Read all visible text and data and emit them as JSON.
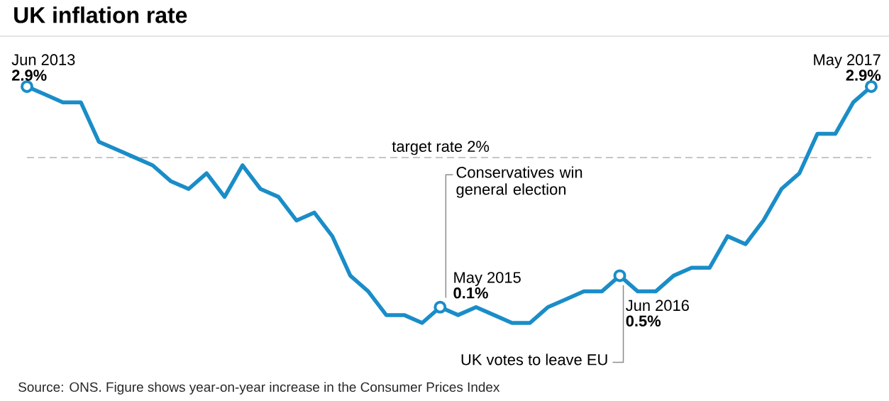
{
  "chart_data": {
    "type": "line",
    "title": "UK inflation rate",
    "categories": [
      null,
      null,
      null,
      null,
      null,
      null,
      null,
      null,
      null,
      null,
      null,
      null,
      null,
      null,
      null,
      null,
      null,
      null,
      null,
      null,
      null,
      null,
      null,
      null,
      null,
      null,
      null,
      null,
      null,
      null,
      null,
      null,
      null,
      null,
      null,
      null,
      null,
      null,
      null,
      null,
      null,
      null,
      null,
      null,
      null,
      null,
      null,
      null
    ],
    "values": [
      2.9,
      2.8,
      2.7,
      2.7,
      2.2,
      2.1,
      2.0,
      1.9,
      1.7,
      1.6,
      1.8,
      1.5,
      1.9,
      1.6,
      1.5,
      1.2,
      1.3,
      1.0,
      0.5,
      0.3,
      0.0,
      0.0,
      -0.1,
      0.1,
      0.0,
      0.1,
      0.0,
      -0.1,
      -0.1,
      0.1,
      0.2,
      0.3,
      0.3,
      0.5,
      0.3,
      0.3,
      0.5,
      0.6,
      0.6,
      1.0,
      0.9,
      1.2,
      1.6,
      1.8,
      2.3,
      2.3,
      2.7,
      2.9
    ],
    "value_labels": [
      "2.9%",
      null,
      null,
      null,
      null,
      null,
      null,
      null,
      null,
      null,
      null,
      null,
      null,
      null,
      null,
      null,
      null,
      null,
      null,
      null,
      null,
      null,
      null,
      "0.1%",
      null,
      null,
      null,
      null,
      null,
      null,
      null,
      null,
      null,
      "0.5%",
      null,
      null,
      null,
      null,
      null,
      null,
      null,
      null,
      null,
      null,
      null,
      null,
      null,
      "2.9%"
    ],
    "color": "#1a8dc8",
    "ref_lines": [
      {
        "axis": "y",
        "value": 2,
        "label": "target rate 2%",
        "color": "#b4b4b4",
        "line_style": "dashed"
      }
    ],
    "annotations": [
      "Jun 2013",
      "May 2015",
      "Jun 2016",
      "May 2017",
      "Conservatives win general election",
      "UK votes to leave EU",
      "Source: ONS. Figure shows year-on-year increase in the Consumer Prices Index"
    ]
  }
}
